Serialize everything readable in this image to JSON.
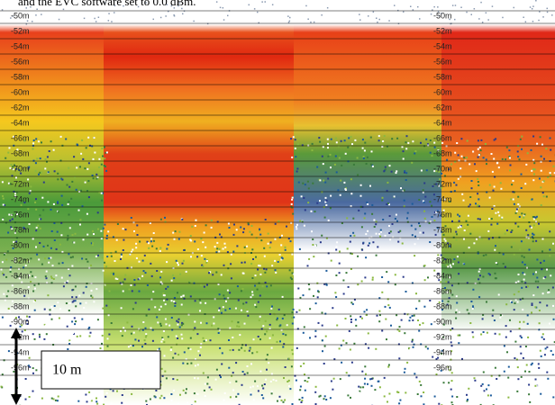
{
  "caption_fragment": "and the EVC software set to 0.0 dBm.",
  "depth_labels": [
    "-50m",
    "-52m",
    "-54m",
    "-56m",
    "-58m",
    "-60m",
    "-62m",
    "-64m",
    "-66m",
    "-68m",
    "-70m",
    "-72m",
    "-74m",
    "-76m",
    "-78m",
    "-80m",
    "-82m",
    "-84m",
    "-86m",
    "-88m",
    "-90m",
    "-92m",
    "-94m",
    "-96m"
  ],
  "scale_label": "10 m"
}
